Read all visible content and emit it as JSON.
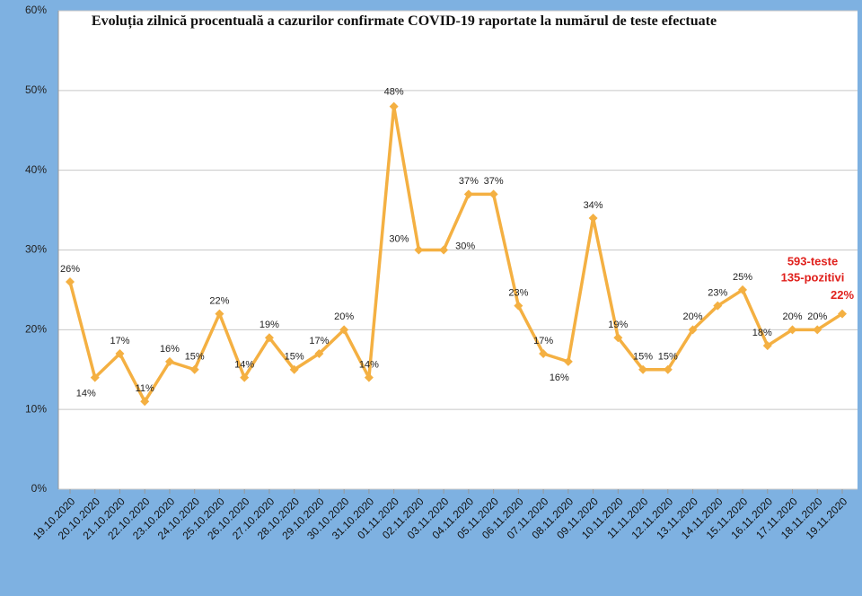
{
  "chart_data": {
    "type": "line",
    "title": "Evoluția zilnică procentuală a cazurilor confirmate COVID-19 raportate la numărul de teste efectuate",
    "categories": [
      "19.10.2020",
      "20.10.2020",
      "21.10.2020",
      "22.10.2020",
      "23.10.2020",
      "24.10.2020",
      "25.10.2020",
      "26.10.2020",
      "27.10.2020",
      "28.10.2020",
      "29.10.2020",
      "30.10.2020",
      "31.10.2020",
      "01.11.2020",
      "02.11.2020",
      "03.11.2020",
      "04.11.2020",
      "05.11.2020",
      "06.11.2020",
      "07.11.2020",
      "08.11.2020",
      "09.11.2020",
      "10.11.2020",
      "11.11.2020",
      "12.11.2020",
      "13.11.2020",
      "14.11.2020",
      "15.11.2020",
      "16.11.2020",
      "17.11.2020",
      "18.11.2020",
      "19.11.2020"
    ],
    "values": [
      26,
      14,
      17,
      11,
      16,
      15,
      22,
      14,
      19,
      15,
      17,
      20,
      14,
      48,
      30,
      30,
      37,
      37,
      23,
      17,
      16,
      34,
      19,
      15,
      15,
      20,
      23,
      25,
      18,
      20,
      20,
      22
    ],
    "value_labels": [
      "26%",
      "14%",
      "17%",
      "11%",
      "16%",
      "15%",
      "22%",
      "14%",
      "19%",
      "15%",
      "17%",
      "20%",
      "14%",
      "48%",
      "30%",
      "30%",
      "37%",
      "37%",
      "23%",
      "17%",
      "16%",
      "34%",
      "19%",
      "15%",
      "15%",
      "20%",
      "23%",
      "25%",
      "18%",
      "20%",
      "20%",
      "22%"
    ],
    "color": "#f4b042",
    "ylim": [
      0,
      60
    ],
    "yticks": [
      {
        "value": 0,
        "label": "0%"
      },
      {
        "value": 10,
        "label": "10%"
      },
      {
        "value": 20,
        "label": "20%"
      },
      {
        "value": 30,
        "label": "30%"
      },
      {
        "value": 40,
        "label": "40%"
      },
      {
        "value": 50,
        "label": "50%"
      },
      {
        "value": 60,
        "label": "60%"
      }
    ],
    "grid": true,
    "annotations": [
      "593-teste",
      "135-pozitivi"
    ]
  }
}
